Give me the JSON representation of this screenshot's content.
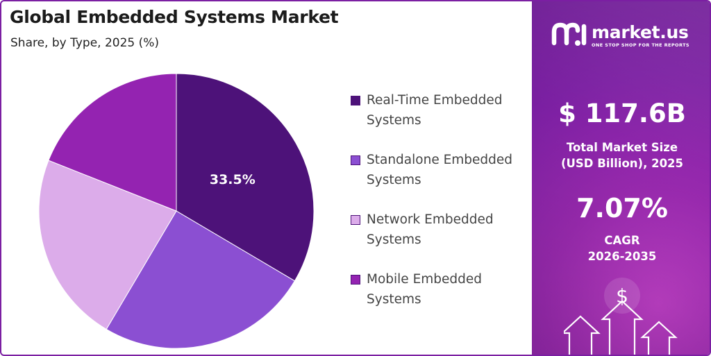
{
  "chart_data": {
    "type": "pie",
    "title": "Global Embedded Systems Market",
    "subtitle": "Share, by Type, 2025 (%)",
    "slices": [
      {
        "label": "Real-Time Embedded Systems",
        "value": 33.5,
        "color": "#4d1279",
        "data_label": "33.5%"
      },
      {
        "label": "Standalone Embedded Systems",
        "value": 25.0,
        "color": "#8b4fd2",
        "data_label": ""
      },
      {
        "label": "Network Embedded Systems",
        "value": 22.5,
        "color": "#dcacea",
        "data_label": ""
      },
      {
        "label": "Mobile Embedded Systems",
        "value": 19.0,
        "color": "#9423b1",
        "data_label": ""
      }
    ],
    "start_angle_deg": 0,
    "direction": "clockwise",
    "legend_placement": "right"
  },
  "brand": {
    "name": "market.us",
    "tagline": "ONE STOP SHOP FOR THE REPORTS",
    "accent": "#7b1fa2"
  },
  "market_size": {
    "value": "$ 117.6B",
    "label_line1": "Total Market Size",
    "label_line2": "(USD Billion), 2025"
  },
  "cagr": {
    "value": "7.07%",
    "label_line1": "CAGR",
    "label_line2": "2026-2035"
  },
  "decor": {
    "dollar_symbol": "$"
  }
}
